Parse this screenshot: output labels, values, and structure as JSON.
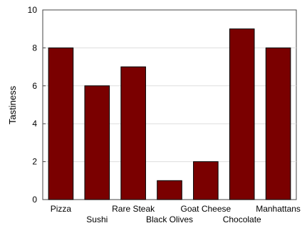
{
  "chart_data": {
    "type": "bar",
    "categories": [
      "Pizza",
      "Sushi",
      "Rare Steak",
      "Black Olives",
      "Goat Cheese",
      "Chocolate",
      "Manhattans"
    ],
    "values": [
      8,
      6,
      7,
      1,
      2,
      9,
      8
    ],
    "ylabel": "Tastiness",
    "xlabel": "",
    "ylim": [
      0,
      10
    ],
    "yticks": [
      0,
      2,
      4,
      6,
      8,
      10
    ],
    "grid": true,
    "bar_color": "#7a0000",
    "bar_edge_color": "#000000"
  }
}
